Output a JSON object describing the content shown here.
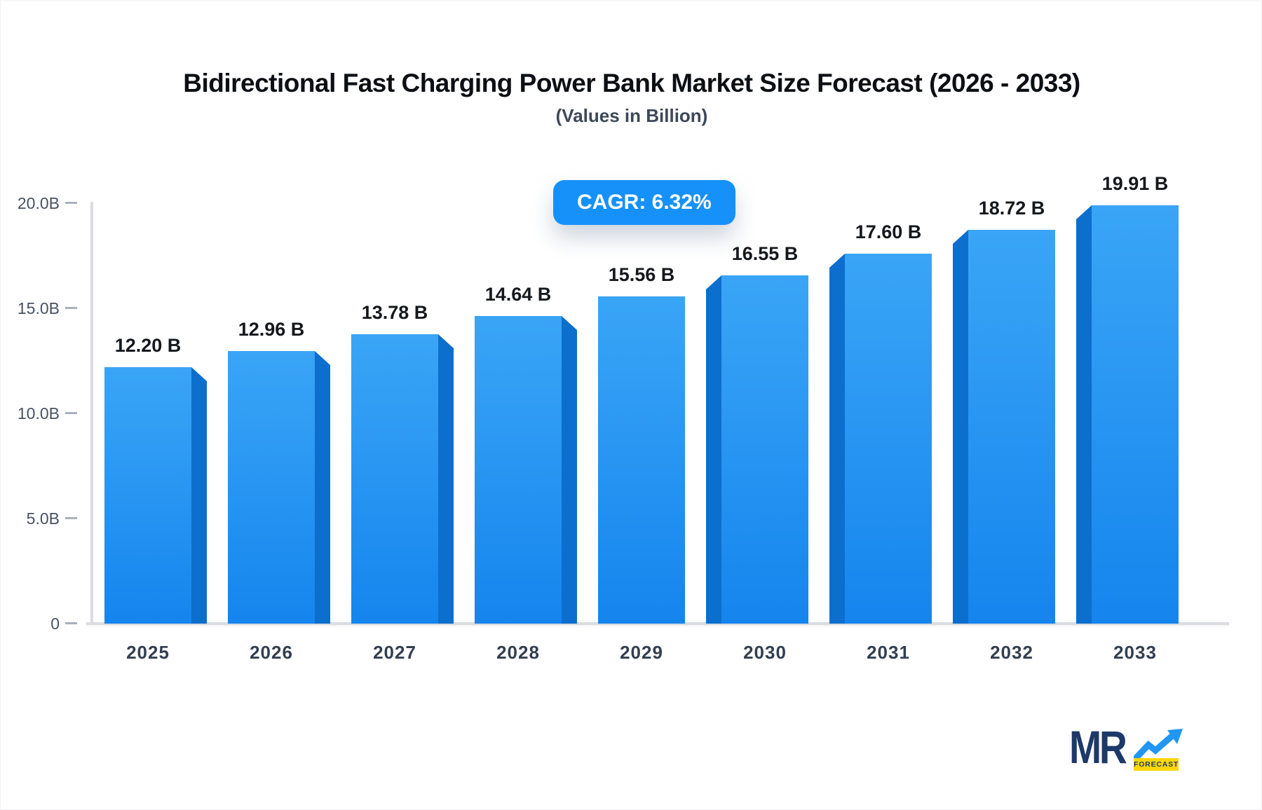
{
  "title": "Bidirectional Fast Charging Power Bank Market Size Forecast (2026 - 2033)",
  "subtitle": "(Values in Billion)",
  "cagr": {
    "label": "CAGR: 6.32%"
  },
  "chart_data": {
    "type": "bar",
    "categories": [
      "2025",
      "2026",
      "2027",
      "2028",
      "2029",
      "2030",
      "2031",
      "2032",
      "2033"
    ],
    "values": [
      12.2,
      12.96,
      13.78,
      14.64,
      15.56,
      16.55,
      17.6,
      18.72,
      19.91
    ],
    "bar_labels": [
      "12.20 B",
      "12.96 B",
      "13.78 B",
      "14.64 B",
      "15.56 B",
      "16.55 B",
      "17.60 B",
      "18.72 B",
      "19.91 B"
    ],
    "y_ticks": [
      "20.0B",
      "15.0B",
      "10.0B",
      "5.0B",
      "0"
    ],
    "y_tick_values": [
      20,
      15,
      10,
      5,
      0
    ],
    "ylim": [
      0,
      20
    ],
    "unit": "Billion",
    "xlabel": "",
    "ylabel": "",
    "grid": false,
    "legend": false
  },
  "colors": {
    "badge_blue": "#1691FA",
    "bar_gradient_top": "#3AA5F6",
    "bar_gradient_bottom": "#1585EE",
    "bar_side": "#0C6ECD",
    "axis_line": "#D9DCE1",
    "logo_navy": "#1D3968",
    "logo_yellow": "#FFD60A",
    "logo_arrow_blue": "#2196F3"
  },
  "logo": {
    "text": "MR",
    "sub": "FORECAST"
  }
}
